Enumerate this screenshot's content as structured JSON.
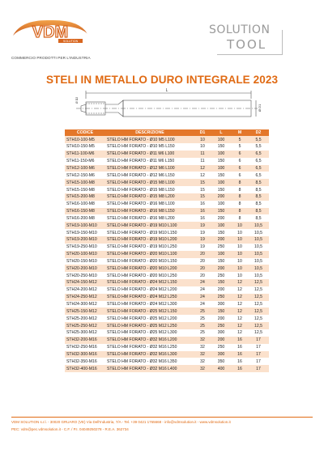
{
  "header": {
    "logo_text": "VDM",
    "logo_tag": "SOLUTION",
    "logo_subtitle": "COMMERCIO PRODOTTI PER L'INDUSTRIA",
    "brand_line1": "SOLUTION",
    "brand_line2": "TOOL"
  },
  "title": "STELI IN METALLO DURO INTEGRALE 2023",
  "drawing": {
    "dim_L": "L",
    "dim_D1": "Ø D1",
    "dim_D2": "Ø D2"
  },
  "table": {
    "headers": [
      "CODICE",
      "DESCRIZIONE",
      "D1",
      "L",
      "M",
      "D2"
    ],
    "rows": [
      [
        "STH10-100-M5",
        "STELO HM FORATO - Ø10 M5 L100",
        "10",
        "100",
        "5",
        "5,5"
      ],
      [
        "STH10-150-M5",
        "STELO HM FORATO - Ø10 M5 L150",
        "10",
        "150",
        "5",
        "5,5"
      ],
      [
        "STH11-100-M6",
        "STELO HM FORATO - Ø11 M6 L100",
        "11",
        "100",
        "6",
        "6,5"
      ],
      [
        "STH11-150-M6",
        "STELO HM FORATO - Ø11 M6 L150",
        "11",
        "150",
        "6",
        "6,5"
      ],
      [
        "STH12-100-M6",
        "STELO HM FORATO - Ø12 M6 L100",
        "12",
        "100",
        "6",
        "6,5"
      ],
      [
        "STH12-150-M6",
        "STELO HM FORATO - Ø12 M6 L150",
        "12",
        "150",
        "6",
        "6,5"
      ],
      [
        "STH15-100-M8",
        "STELO HM FORATO - Ø15 M8 L100",
        "15",
        "100",
        "8",
        "8,5"
      ],
      [
        "STH15-150-M8",
        "STELO HM FORATO - Ø15 M8 L150",
        "15",
        "150",
        "8",
        "8,5"
      ],
      [
        "STH15-200-M8",
        "STELO HM FORATO - Ø15 M8 L200",
        "15",
        "200",
        "8",
        "8,5"
      ],
      [
        "STH16-100-M8",
        "STELO HM FORATO - Ø16 M8 L100",
        "16",
        "100",
        "8",
        "8,5"
      ],
      [
        "STH16-150-M8",
        "STELO HM FORATO - Ø16 M8 L150",
        "16",
        "150",
        "8",
        "8,5"
      ],
      [
        "STH16-200-M8",
        "STELO HM FORATO - Ø16 M8 L200",
        "16",
        "200",
        "8",
        "8,5"
      ],
      [
        "STH19-100-M10",
        "STELO HM FORATO - Ø19 M10 L100",
        "19",
        "100",
        "10",
        "10,5"
      ],
      [
        "STH19-150-M10",
        "STELO HM FORATO - Ø19 M10 L150",
        "19",
        "150",
        "10",
        "10,5"
      ],
      [
        "STH19-200-M10",
        "STELO HM FORATO - Ø19 M10 L200",
        "19",
        "200",
        "10",
        "10,5"
      ],
      [
        "STH19-250-M10",
        "STELO HM FORATO - Ø19 M10 L250",
        "19",
        "250",
        "10",
        "10,5"
      ],
      [
        "STH20-100-M10",
        "STELO HM FORATO - Ø20 M10 L100",
        "20",
        "100",
        "10",
        "10,5"
      ],
      [
        "STH20-150-M10",
        "STELO HM FORATO - Ø20 M10 L150",
        "20",
        "150",
        "10",
        "10,5"
      ],
      [
        "STH20-200-M10",
        "STELO HM FORATO - Ø20 M10 L200",
        "20",
        "200",
        "10",
        "10,5"
      ],
      [
        "STH20-250-M10",
        "STELO HM FORATO - Ø20 M10 L250",
        "20",
        "250",
        "10",
        "10,5"
      ],
      [
        "STH24-150-M12",
        "STELO HM FORATO - Ø24 M12 L150",
        "24",
        "150",
        "12",
        "12,5"
      ],
      [
        "STH24-200-M12",
        "STELO HM FORATO - Ø24 M12 L200",
        "24",
        "200",
        "12",
        "12,5"
      ],
      [
        "STH24-250-M12",
        "STELO HM FORATO - Ø24 M12 L250",
        "24",
        "250",
        "12",
        "12,5"
      ],
      [
        "STH24-300-M12",
        "STELO HM FORATO - Ø24 M12 L300",
        "24",
        "300",
        "12",
        "12,5"
      ],
      [
        "STH25-150-M12",
        "STELO HM FORATO - Ø25 M12 L150",
        "25",
        "150",
        "12",
        "12,5"
      ],
      [
        "STH25-200-M12",
        "STELO HM FORATO - Ø25 M12 L200",
        "25",
        "200",
        "12",
        "12,5"
      ],
      [
        "STH25-250-M12",
        "STELO HM FORATO - Ø25 M12 L250",
        "25",
        "250",
        "12",
        "12,5"
      ],
      [
        "STH25-300-M12",
        "STELO HM FORATO - Ø25 M12 L300",
        "25",
        "300",
        "12",
        "12,5"
      ],
      [
        "STH32-200-M16",
        "STELO HM FORATO - Ø32 M16 L200",
        "32",
        "200",
        "16",
        "17"
      ],
      [
        "STH32-250-M16",
        "STELO HM FORATO - Ø32 M16 L250",
        "32",
        "250",
        "16",
        "17"
      ],
      [
        "STH32-300-M16",
        "STELO HM FORATO - Ø32 M16 L300",
        "32",
        "300",
        "16",
        "17"
      ],
      [
        "STH32-350-M16",
        "STELO HM FORATO - Ø32 M16 L350",
        "32",
        "350",
        "16",
        "17"
      ],
      [
        "STH32-400-M16",
        "STELO HM FORATO - Ø32 M16 L400",
        "32",
        "400",
        "16",
        "17"
      ]
    ]
  },
  "footer": {
    "line1": "VDM SOLUTION s.r.l. - 30020 GRUARO (VE) Via Dell'Industria, 7/A - Tel. +39 0421 1765668 - info@vdmsolution.it - www.vdmsolution.it",
    "line2": "PEC: vdm@pec.vdmsolution.it - C.F. / P.I. 04049250278 - R.E.A. 362734"
  },
  "colors": {
    "accent": "#e4772a",
    "row_tint": "#fbe1cc",
    "title": "#e06a13"
  }
}
